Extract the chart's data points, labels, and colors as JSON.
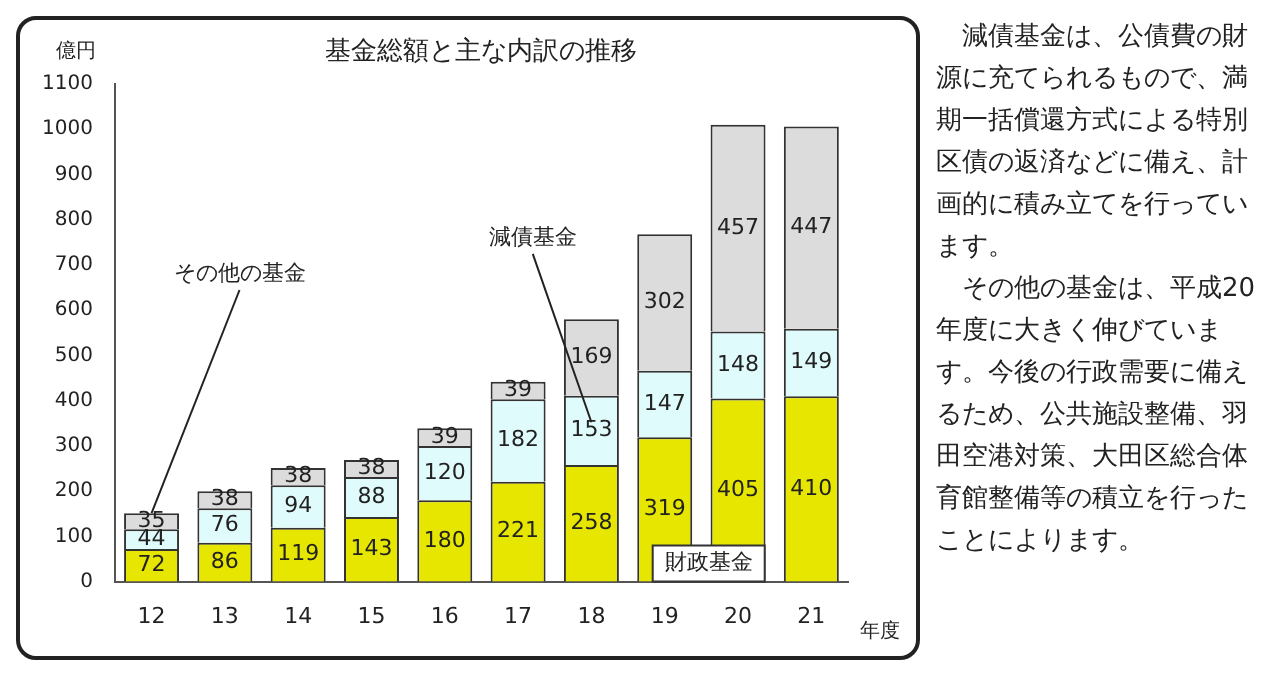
{
  "chart_data": {
    "type": "bar",
    "title": "基金総額と主な内訳の推移",
    "ylabel": "億円",
    "xlabel": "年度",
    "categories": [
      "12",
      "13",
      "14",
      "15",
      "16",
      "17",
      "18",
      "19",
      "20",
      "21"
    ],
    "stacked": true,
    "data_labels": true,
    "legend": false,
    "grid": false,
    "ylim": [
      0,
      1100
    ],
    "yticks": [
      0,
      100,
      200,
      300,
      400,
      500,
      600,
      700,
      800,
      900,
      1000,
      1100
    ],
    "series": [
      {
        "name": "財政基金",
        "color": "#e6e600",
        "values": [
          72,
          86,
          119,
          143,
          180,
          221,
          258,
          319,
          405,
          410
        ]
      },
      {
        "name": "減債基金",
        "color": "#e0fbfb",
        "values": [
          44,
          76,
          94,
          88,
          120,
          182,
          153,
          147,
          148,
          149
        ]
      },
      {
        "name": "その他の基金",
        "color": "#dcdcdc",
        "values": [
          35,
          38,
          38,
          38,
          39,
          39,
          169,
          302,
          457,
          447
        ]
      }
    ],
    "annotations": [
      "減債基金は、公債費の財源に充てられるもので、満期一括償還方式による特別区債の返済などに備え、計画的に積み立てを行っています。",
      "その他の基金は、平成20年度に大きく伸びています。今後の行政需要に備えるため、公共施設整備、羽田空港対策、大田区総合体育館整備等の積立を行ったことによります。"
    ]
  }
}
